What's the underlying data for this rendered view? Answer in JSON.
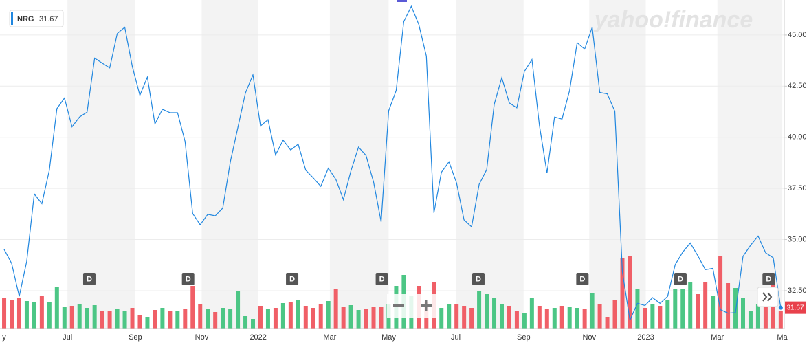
{
  "chart_data": {
    "type": "line",
    "symbol": "NRG",
    "last_price": 31.67,
    "watermark": "yahoo!finance",
    "series": [
      {
        "name": "NRG",
        "color": "#1f86df",
        "values": [
          34.52,
          33.83,
          32.22,
          33.94,
          37.23,
          36.75,
          38.39,
          41.4,
          41.92,
          40.51,
          40.99,
          41.23,
          43.87,
          43.63,
          43.39,
          45.07,
          45.38,
          43.46,
          42.05,
          42.94,
          40.65,
          41.37,
          41.2,
          41.2,
          39.79,
          36.27,
          35.72,
          36.23,
          36.16,
          36.54,
          38.8,
          40.48,
          42.16,
          43.05,
          40.55,
          40.86,
          39.14,
          39.86,
          39.38,
          39.66,
          38.39,
          38.01,
          37.6,
          38.49,
          37.94,
          36.95,
          38.36,
          39.52,
          39.11,
          37.81,
          35.86,
          41.3,
          42.29,
          45.65,
          46.4,
          45.51,
          43.97,
          36.3,
          38.29,
          38.8,
          37.77,
          35.96,
          35.62,
          37.7,
          38.42,
          41.61,
          42.91,
          41.68,
          41.44,
          43.22,
          43.8,
          40.58,
          38.25,
          40.99,
          40.89,
          42.29,
          44.62,
          44.31,
          45.38,
          42.19,
          42.12,
          41.27,
          33.42,
          31.06,
          31.88,
          31.78,
          32.16,
          31.88,
          32.22,
          33.77,
          34.38,
          34.83,
          34.21,
          33.53,
          33.59,
          31.57,
          31.4,
          31.43,
          34.18,
          34.72,
          35.17,
          34.35,
          34.11,
          31.67
        ]
      }
    ],
    "volume": {
      "up_color": "#4cc685",
      "down_color": "#f05f67",
      "ylim": [
        0,
        12
      ],
      "values": [
        4.5,
        4.2,
        4.5,
        4.0,
        3.9,
        4.8,
        3.8,
        6.0,
        3.2,
        3.3,
        3.5,
        3.0,
        3.4,
        2.6,
        2.5,
        2.8,
        2.5,
        3.0,
        2.0,
        1.7,
        2.7,
        3.0,
        2.5,
        2.6,
        2.8,
        6.2,
        3.6,
        2.8,
        2.4,
        3.0,
        2.9,
        5.4,
        1.8,
        1.4,
        3.3,
        2.8,
        3.0,
        3.7,
        3.9,
        4.2,
        3.3,
        3.0,
        3.6,
        4.0,
        5.8,
        3.2,
        3.4,
        2.7,
        2.8,
        3.1,
        3.1,
        3.6,
        6.2,
        7.8,
        4.7,
        6.2,
        3.8,
        6.8,
        3.0,
        3.6,
        3.5,
        3.3,
        3.0,
        5.5,
        5.0,
        4.5,
        3.6,
        3.3,
        2.6,
        2.2,
        4.5,
        3.3,
        2.9,
        3.0,
        3.3,
        3.2,
        3.0,
        2.9,
        5.2,
        3.5,
        1.7,
        4.1,
        10.3,
        10.6,
        5.7,
        3.0,
        3.6,
        3.3,
        4.2,
        5.8,
        5.8,
        6.8,
        5.0,
        6.8,
        4.8,
        10.6,
        6.6,
        5.9,
        4.4,
        2.6,
        3.6,
        3.4,
        7.5,
        2.5
      ]
    },
    "annotations": [
      {
        "x": 11.3,
        "label": "D"
      },
      {
        "x": 24.4,
        "label": "D"
      },
      {
        "x": 38.2,
        "label": "D"
      },
      {
        "x": 50.1,
        "label": "D"
      },
      {
        "x": 62.9,
        "label": "D"
      },
      {
        "x": 76.7,
        "label": "D"
      },
      {
        "x": 89.7,
        "label": "D"
      },
      {
        "x": 101.4,
        "label": "D"
      }
    ],
    "xlim": [
      -0.55,
      103.47
    ],
    "xticks": [
      {
        "value": 0,
        "label": "y"
      },
      {
        "value": 8.4,
        "label": "Jul"
      },
      {
        "value": 17.4,
        "label": "Sep"
      },
      {
        "value": 26.2,
        "label": "Nov"
      },
      {
        "value": 33.7,
        "label": "2022"
      },
      {
        "value": 43.2,
        "label": "Mar"
      },
      {
        "value": 51.0,
        "label": "May"
      },
      {
        "value": 59.9,
        "label": "Jul"
      },
      {
        "value": 68.9,
        "label": "Sep"
      },
      {
        "value": 77.6,
        "label": "Nov"
      },
      {
        "value": 85.1,
        "label": "2023"
      },
      {
        "value": 94.6,
        "label": "Mar"
      },
      {
        "value": 103.2,
        "label": "Ma"
      }
    ],
    "ylim": [
      30.65,
      46.71
    ],
    "yticks": [
      {
        "value": 32.5,
        "label": "32.50"
      },
      {
        "value": 35,
        "label": "35.00"
      },
      {
        "value": 37.5,
        "label": "37.50"
      },
      {
        "value": 40,
        "label": "40.00"
      },
      {
        "value": 42.5,
        "label": "42.50"
      },
      {
        "value": 45,
        "label": "45.00"
      }
    ],
    "grid": true,
    "band_color": "#f3f3f3",
    "tag_color": "#e8414c"
  }
}
